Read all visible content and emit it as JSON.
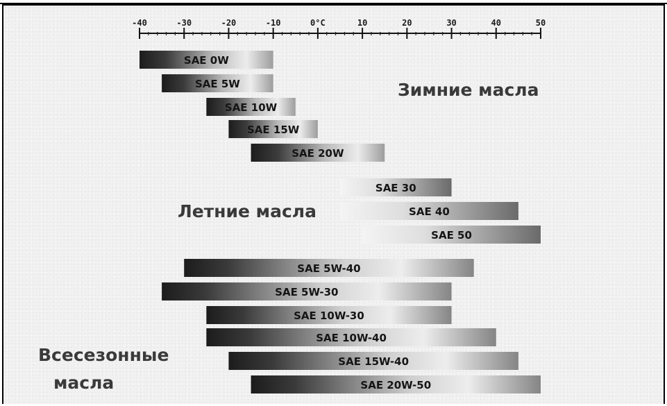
{
  "chart_data": {
    "type": "bar",
    "orientation": "horizontal-range",
    "unit_label": "0°C",
    "xlim": [
      -40,
      50
    ],
    "ticks": [
      "-40",
      "-30",
      "-20",
      "-10",
      "0°C",
      "10",
      "20",
      "30",
      "40",
      "50"
    ],
    "tick_values": [
      -40,
      -30,
      -20,
      -10,
      0,
      10,
      20,
      30,
      40,
      50
    ],
    "grid": false,
    "legend": "none",
    "colors": {
      "bar_dark": "#1c1c1c",
      "bar_light": "#ececec",
      "label_text": "#151515",
      "group_text": "#3a3a3a",
      "background": "#f1f1f1"
    },
    "groups": [
      {
        "name": "Зимние масла",
        "bars": [
          {
            "label": "SAE 0W",
            "from": -40,
            "to": -10
          },
          {
            "label": "SAE 5W",
            "from": -35,
            "to": -10
          },
          {
            "label": "SAE 10W",
            "from": -25,
            "to": -5
          },
          {
            "label": "SAE 15W",
            "from": -20,
            "to": 0
          },
          {
            "label": "SAE 20W",
            "from": -15,
            "to": 15
          }
        ]
      },
      {
        "name": "Летние масла",
        "bars": [
          {
            "label": "SAE 30",
            "from": 5,
            "to": 30
          },
          {
            "label": "SAE 40",
            "from": 5,
            "to": 45
          },
          {
            "label": "SAE 50",
            "from": 10,
            "to": 50
          }
        ]
      },
      {
        "name": "Всесезонные масла",
        "name_lines": [
          "Всесезонные",
          "масла"
        ],
        "bars": [
          {
            "label": "SAE 5W-40",
            "from": -30,
            "to": 35
          },
          {
            "label": "SAE 5W-30",
            "from": -35,
            "to": 30
          },
          {
            "label": "SAE 10W-30",
            "from": -25,
            "to": 30
          },
          {
            "label": "SAE 10W-40",
            "from": -25,
            "to": 40
          },
          {
            "label": "SAE 15W-40",
            "from": -20,
            "to": 45
          },
          {
            "label": "SAE 20W-50",
            "from": -15,
            "to": 50
          }
        ]
      }
    ]
  }
}
